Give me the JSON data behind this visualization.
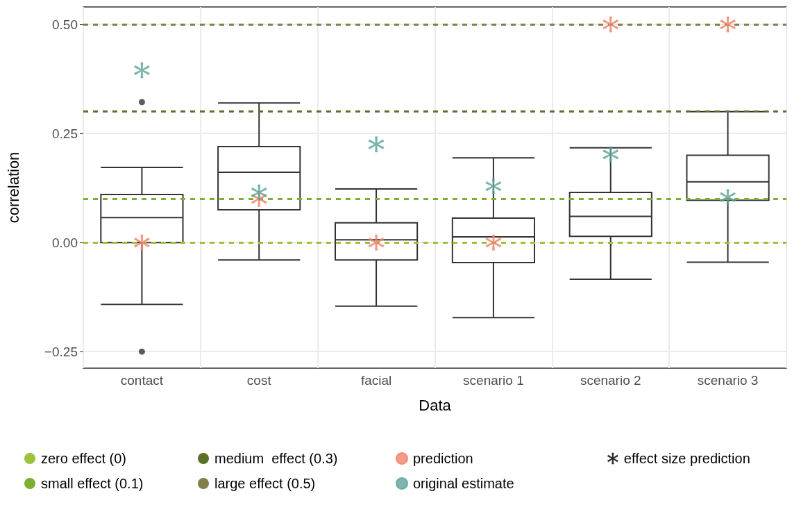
{
  "chart_data": {
    "type": "box",
    "xlabel": "Data",
    "ylabel": "correlation",
    "categories": [
      "contact",
      "cost",
      "facial",
      "scenario 1",
      "scenario 2",
      "scenario 3"
    ],
    "ylim": [
      -0.288,
      0.54
    ],
    "yticks": [
      {
        "value": -0.25,
        "label": "−0.25"
      },
      {
        "value": 0,
        "label": "0.00"
      },
      {
        "value": 0.25,
        "label": "0.25"
      },
      {
        "value": 0.5,
        "label": "0.50"
      }
    ],
    "grid": true,
    "legend": "bottom",
    "marker": "star",
    "boxes": [
      {
        "low": -0.142,
        "q1": 0.0,
        "median": 0.057,
        "q3": 0.11,
        "high": 0.172,
        "outliers": [
          0.322,
          -0.25
        ]
      },
      {
        "low": -0.04,
        "q1": 0.075,
        "median": 0.161,
        "q3": 0.22,
        "high": 0.32
      },
      {
        "low": -0.146,
        "q1": -0.04,
        "median": 0.006,
        "q3": 0.045,
        "high": 0.123
      },
      {
        "low": -0.172,
        "q1": -0.046,
        "median": 0.013,
        "q3": 0.056,
        "high": 0.194
      },
      {
        "low": -0.084,
        "q1": 0.014,
        "median": 0.06,
        "q3": 0.115,
        "high": 0.217
      },
      {
        "low": -0.045,
        "q1": 0.097,
        "median": 0.139,
        "q3": 0.2,
        "high": 0.3
      }
    ],
    "ref_lines": [
      {
        "axis": "y",
        "value": 0,
        "label": "zero effect (0)",
        "color": "#9dc23c",
        "line_style": "dashed"
      },
      {
        "axis": "y",
        "value": 0.1,
        "label": "small effect (0.1)",
        "color": "#7bb032",
        "line_style": "dashed"
      },
      {
        "axis": "y",
        "value": 0.3,
        "label": "medium  effect (0.3)",
        "color": "#5a7228",
        "line_style": "dashed"
      },
      {
        "axis": "y",
        "value": 0.5,
        "label": "large effect (0.5)",
        "color": "#808048",
        "line_style": "dashed"
      }
    ],
    "series": [
      {
        "name": "prediction",
        "type": "scatter",
        "color": "#ee836c",
        "x": [
          "contact",
          "cost",
          "facial",
          "scenario 1",
          "scenario 2",
          "scenario 3"
        ],
        "values": [
          0,
          0.1,
          0,
          0,
          0.5,
          0.5
        ]
      },
      {
        "name": "original estimate",
        "type": "scatter",
        "color": "#5fa39a",
        "x": [
          "contact",
          "cost",
          "facial",
          "scenario 1",
          "scenario 2",
          "scenario 3"
        ],
        "values": [
          0.395,
          0.115,
          0.225,
          0.129,
          0.202,
          0.104
        ]
      },
      {
        "name": "effect size prediction",
        "type": "scatter",
        "color": "#000000",
        "x": [
          "contact",
          "cost",
          "facial",
          "scenario 1",
          "scenario 2",
          "scenario 3"
        ],
        "values": [
          null,
          null,
          null,
          null,
          null,
          null
        ]
      }
    ]
  }
}
